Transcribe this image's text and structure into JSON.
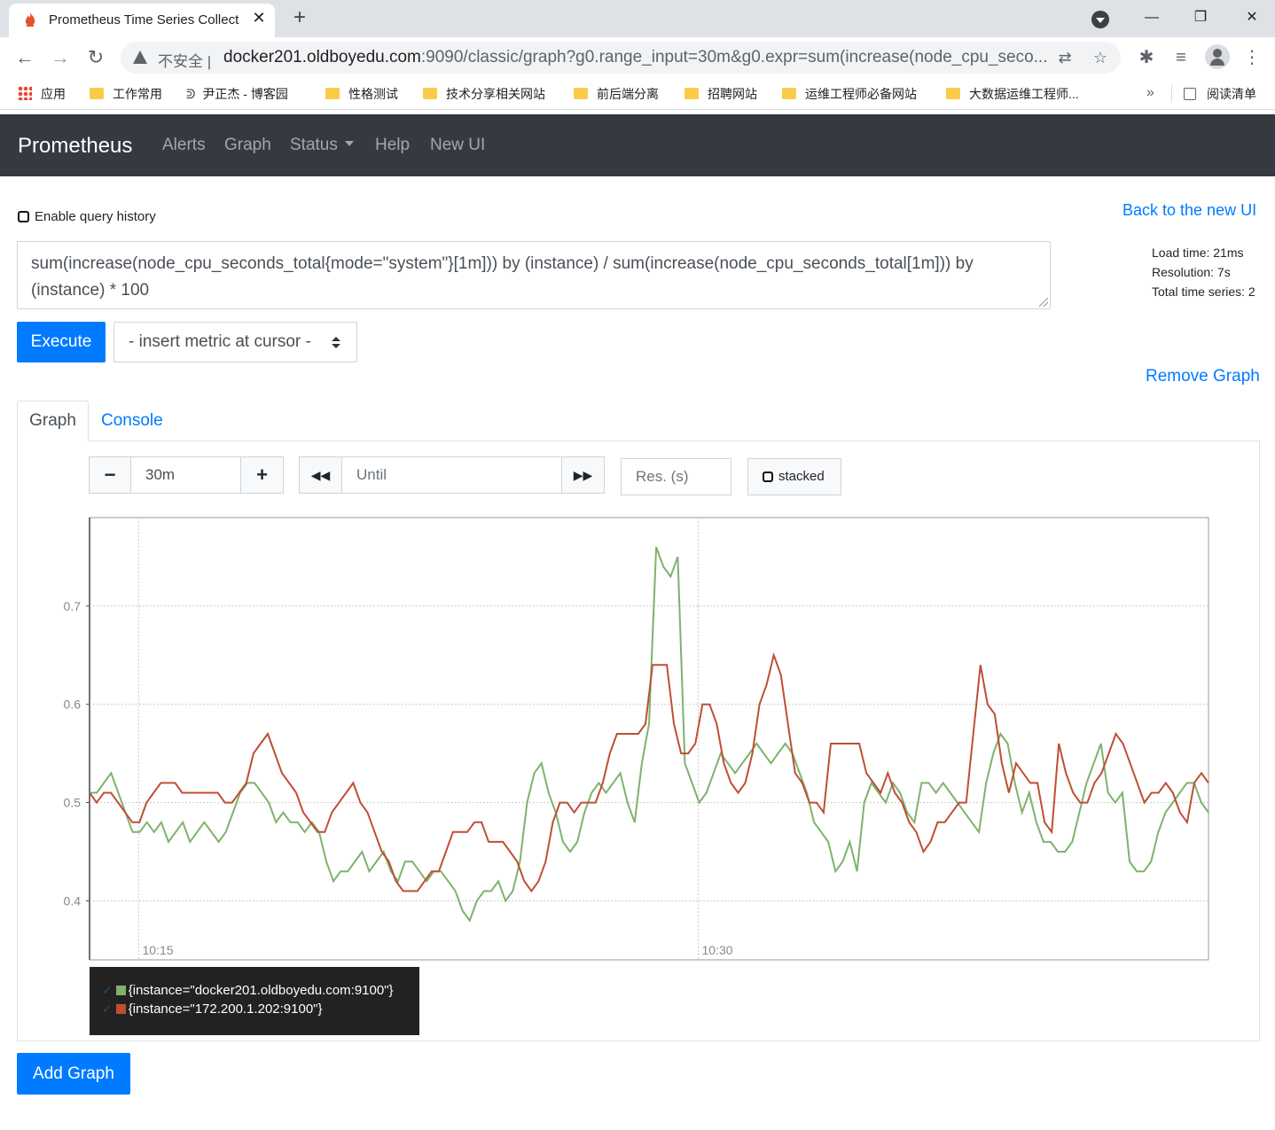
{
  "browser": {
    "tab_title": "Prometheus Time Series Collect",
    "insecure_label": "不安全",
    "url_host": "docker201.oldboyedu.com",
    "url_rest": ":9090/classic/graph?g0.range_input=30m&g0.expr=sum(increase(node_cpu_seco...",
    "bookmarks": [
      "应用",
      "工作常用",
      "尹正杰 - 博客园",
      "性格测试",
      "技术分享相关网站",
      "前后端分离",
      "招聘网站",
      "运维工程师必备网站",
      "大数据运维工程师..."
    ],
    "more": "»",
    "reading_list": "阅读清单"
  },
  "nav": {
    "brand": "Prometheus",
    "links": [
      "Alerts",
      "Graph",
      "Status",
      "Help",
      "New UI"
    ]
  },
  "page": {
    "enable_history": "Enable query history",
    "back_link": "Back to the new UI",
    "load_time": "Load time: 21ms",
    "resolution": "Resolution: 7s",
    "total_series": "Total time series: 2",
    "expression": "sum(increase(node_cpu_seconds_total{mode=\"system\"}[1m])) by (instance) / sum(increase(node_cpu_seconds_total[1m])) by (instance) * 100",
    "execute": "Execute",
    "insert_metric": "- insert metric at cursor -",
    "remove_graph": "Remove Graph",
    "tabs": [
      "Graph",
      "Console"
    ],
    "range": "30m",
    "until_placeholder": "Until",
    "res_placeholder": "Res. (s)",
    "stacked": "stacked",
    "add_graph": "Add Graph",
    "btn_minus": "−",
    "btn_plus": "+",
    "btn_back": "◀◀",
    "btn_fwd": "▶▶"
  },
  "chart_data": {
    "type": "line",
    "x_ticks": [
      "10:15",
      "10:30"
    ],
    "y_ticks": [
      "0.4",
      "0.5",
      "0.6",
      "0.7"
    ],
    "ylim": [
      0.34,
      0.79
    ],
    "grid": true,
    "legend_placement": "bottom-left",
    "series": [
      {
        "name": "{instance=\"docker201.oldboyedu.com:9100\"}",
        "color": "#7eb26d",
        "values": [
          0.51,
          0.51,
          0.52,
          0.53,
          0.51,
          0.49,
          0.47,
          0.47,
          0.48,
          0.47,
          0.48,
          0.46,
          0.47,
          0.48,
          0.46,
          0.47,
          0.48,
          0.47,
          0.46,
          0.47,
          0.49,
          0.51,
          0.52,
          0.52,
          0.51,
          0.5,
          0.48,
          0.49,
          0.48,
          0.48,
          0.47,
          0.48,
          0.47,
          0.44,
          0.42,
          0.43,
          0.43,
          0.44,
          0.45,
          0.43,
          0.44,
          0.45,
          0.43,
          0.42,
          0.44,
          0.44,
          0.43,
          0.42,
          0.43,
          0.43,
          0.42,
          0.41,
          0.39,
          0.38,
          0.4,
          0.41,
          0.41,
          0.42,
          0.4,
          0.41,
          0.44,
          0.5,
          0.53,
          0.54,
          0.51,
          0.49,
          0.46,
          0.45,
          0.46,
          0.49,
          0.51,
          0.52,
          0.51,
          0.52,
          0.53,
          0.5,
          0.48,
          0.54,
          0.58,
          0.76,
          0.74,
          0.73,
          0.75,
          0.54,
          0.52,
          0.5,
          0.51,
          0.53,
          0.55,
          0.54,
          0.53,
          0.54,
          0.55,
          0.56,
          0.55,
          0.54,
          0.55,
          0.56,
          0.55,
          0.53,
          0.51,
          0.48,
          0.47,
          0.46,
          0.43,
          0.44,
          0.46,
          0.43,
          0.5,
          0.52,
          0.51,
          0.5,
          0.52,
          0.51,
          0.49,
          0.48,
          0.52,
          0.52,
          0.51,
          0.52,
          0.51,
          0.5,
          0.49,
          0.48,
          0.47,
          0.52,
          0.55,
          0.57,
          0.56,
          0.52,
          0.49,
          0.51,
          0.48,
          0.46,
          0.46,
          0.45,
          0.45,
          0.46,
          0.49,
          0.52,
          0.54,
          0.56,
          0.51,
          0.5,
          0.51,
          0.44,
          0.43,
          0.43,
          0.44,
          0.47,
          0.49,
          0.5,
          0.51,
          0.52,
          0.52,
          0.5,
          0.49
        ]
      },
      {
        "name": "{instance=\"172.200.1.202:9100\"}",
        "color": "#bf4e35",
        "values": [
          0.51,
          0.5,
          0.51,
          0.51,
          0.5,
          0.49,
          0.48,
          0.48,
          0.5,
          0.51,
          0.52,
          0.52,
          0.52,
          0.51,
          0.51,
          0.51,
          0.51,
          0.51,
          0.51,
          0.5,
          0.5,
          0.51,
          0.52,
          0.55,
          0.56,
          0.57,
          0.55,
          0.53,
          0.52,
          0.51,
          0.49,
          0.48,
          0.47,
          0.47,
          0.49,
          0.5,
          0.51,
          0.52,
          0.5,
          0.49,
          0.47,
          0.45,
          0.44,
          0.42,
          0.41,
          0.41,
          0.41,
          0.42,
          0.43,
          0.43,
          0.45,
          0.47,
          0.47,
          0.47,
          0.48,
          0.48,
          0.46,
          0.46,
          0.46,
          0.45,
          0.44,
          0.42,
          0.41,
          0.42,
          0.44,
          0.48,
          0.5,
          0.5,
          0.49,
          0.5,
          0.5,
          0.5,
          0.52,
          0.55,
          0.57,
          0.57,
          0.57,
          0.57,
          0.58,
          0.64,
          0.64,
          0.64,
          0.58,
          0.55,
          0.55,
          0.56,
          0.6,
          0.6,
          0.58,
          0.54,
          0.52,
          0.51,
          0.52,
          0.55,
          0.6,
          0.62,
          0.65,
          0.63,
          0.58,
          0.53,
          0.52,
          0.5,
          0.5,
          0.49,
          0.56,
          0.56,
          0.56,
          0.56,
          0.56,
          0.53,
          0.52,
          0.51,
          0.53,
          0.51,
          0.5,
          0.48,
          0.47,
          0.45,
          0.46,
          0.48,
          0.48,
          0.49,
          0.5,
          0.5,
          0.57,
          0.64,
          0.6,
          0.59,
          0.54,
          0.51,
          0.54,
          0.53,
          0.52,
          0.52,
          0.48,
          0.47,
          0.56,
          0.53,
          0.51,
          0.5,
          0.5,
          0.52,
          0.53,
          0.55,
          0.57,
          0.56,
          0.54,
          0.52,
          0.5,
          0.51,
          0.51,
          0.52,
          0.51,
          0.49,
          0.48,
          0.52,
          0.53,
          0.52
        ]
      }
    ]
  }
}
